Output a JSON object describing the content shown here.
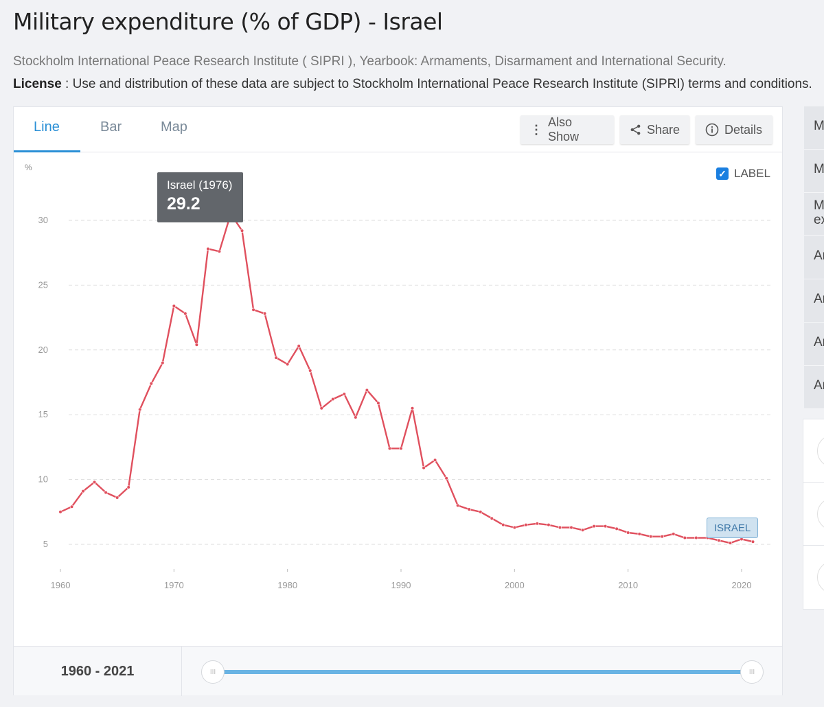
{
  "header": {
    "title": "Military expenditure (% of GDP) - Israel",
    "source": "Stockholm International Peace Research Institute ( SIPRI ), Yearbook: Armaments, Disarmament and International Security.",
    "license_label": "License",
    "license_text": " : Use and distribution of these data are subject to Stockholm International Peace Research Institute (SIPRI) terms and conditions."
  },
  "tabs": [
    {
      "label": "Line"
    },
    {
      "label": "Bar"
    },
    {
      "label": "Map"
    }
  ],
  "toolbar": {
    "also_show": "Also Show",
    "share": "Share",
    "details": "Details"
  },
  "label_toggle": {
    "label": "LABEL",
    "checked": true,
    "check": "✓"
  },
  "tooltip": {
    "title": "Israel (1976)",
    "value": "29.2"
  },
  "series_label": "ISRAEL",
  "range": {
    "text": "1960 - 2021",
    "handle": "III"
  },
  "sidebar": {
    "items": [
      "M",
      "M",
      "M\nex",
      "Ar",
      "Ar",
      "Ar",
      "Ar"
    ]
  },
  "colors": {
    "line": "#e0505e",
    "accent": "#2a8fd6"
  },
  "chart_data": {
    "type": "line",
    "title": "Military expenditure (% of GDP) - Israel",
    "ylabel": "%",
    "xlabel": "",
    "ylim": [
      3,
      33
    ],
    "xlim": [
      1960,
      2021
    ],
    "yticks": [
      5,
      10,
      15,
      20,
      25,
      30
    ],
    "xticks": [
      1960,
      1970,
      1980,
      1990,
      2000,
      2010,
      2020
    ],
    "grid": true,
    "series": [
      {
        "name": "Israel",
        "x": [
          1960,
          1961,
          1962,
          1963,
          1964,
          1965,
          1966,
          1967,
          1968,
          1969,
          1970,
          1971,
          1972,
          1973,
          1974,
          1975,
          1976,
          1977,
          1978,
          1979,
          1980,
          1981,
          1982,
          1983,
          1984,
          1985,
          1986,
          1987,
          1988,
          1989,
          1990,
          1991,
          1992,
          1993,
          1994,
          1995,
          1996,
          1997,
          1998,
          1999,
          2000,
          2001,
          2002,
          2003,
          2004,
          2005,
          2006,
          2007,
          2008,
          2009,
          2010,
          2011,
          2012,
          2013,
          2014,
          2015,
          2016,
          2017,
          2018,
          2019,
          2020,
          2021
        ],
        "values": [
          7.5,
          7.9,
          9.1,
          9.8,
          9.0,
          8.6,
          9.4,
          15.4,
          17.4,
          19.0,
          23.4,
          22.8,
          20.4,
          27.8,
          27.6,
          30.5,
          29.2,
          23.1,
          22.8,
          19.4,
          18.9,
          20.3,
          18.4,
          15.5,
          16.2,
          16.6,
          14.8,
          16.9,
          15.9,
          12.4,
          12.4,
          15.5,
          10.9,
          11.5,
          10.1,
          8.0,
          7.7,
          7.5,
          7.0,
          6.5,
          6.3,
          6.5,
          6.6,
          6.5,
          6.3,
          6.3,
          6.1,
          6.4,
          6.4,
          6.2,
          5.9,
          5.8,
          5.6,
          5.6,
          5.8,
          5.5,
          5.5,
          5.5,
          5.3,
          5.1,
          5.4,
          5.2
        ]
      }
    ]
  }
}
